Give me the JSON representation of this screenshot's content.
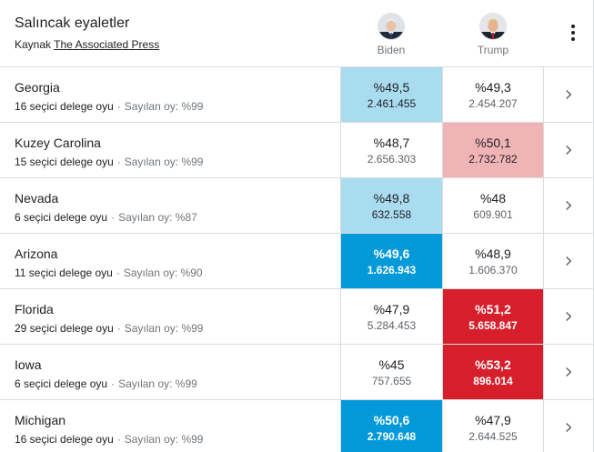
{
  "header": {
    "title": "Salıncak eyaletler",
    "source_prefix": "Kaynak",
    "source_link": "The Associated Press",
    "candidates": [
      {
        "name": "Biden",
        "icon": "biden-avatar-icon"
      },
      {
        "name": "Trump",
        "icon": "trump-avatar-icon"
      }
    ],
    "menu_icon": "more-vert-icon"
  },
  "colors": {
    "light_blue": "#aadcf0",
    "blue": "#049ad9",
    "light_red": "#f1b4b6",
    "red": "#d71f2c",
    "divider": "#dadce0"
  },
  "states": [
    {
      "name": "Georgia",
      "delegates": "16 seçici delege oyu",
      "counted": "Sayılan oy: %99",
      "biden": {
        "pct": "%49,5",
        "votes": "2.461.455",
        "style": "lightblue"
      },
      "trump": {
        "pct": "%49,3",
        "votes": "2.454.207",
        "style": "none"
      }
    },
    {
      "name": "Kuzey Carolina",
      "delegates": "15 seçici delege oyu",
      "counted": "Sayılan oy: %99",
      "biden": {
        "pct": "%48,7",
        "votes": "2.656.303",
        "style": "none"
      },
      "trump": {
        "pct": "%50,1",
        "votes": "2.732.782",
        "style": "lightred"
      }
    },
    {
      "name": "Nevada",
      "delegates": "6 seçici delege oyu",
      "counted": "Sayılan oy: %87",
      "biden": {
        "pct": "%49,8",
        "votes": "632.558",
        "style": "lightblue"
      },
      "trump": {
        "pct": "%48",
        "votes": "609.901",
        "style": "none"
      }
    },
    {
      "name": "Arizona",
      "delegates": "11 seçici delege oyu",
      "counted": "Sayılan oy: %90",
      "biden": {
        "pct": "%49,6",
        "votes": "1.626.943",
        "style": "blue"
      },
      "trump": {
        "pct": "%48,9",
        "votes": "1.606.370",
        "style": "none"
      }
    },
    {
      "name": "Florida",
      "delegates": "29 seçici delege oyu",
      "counted": "Sayılan oy: %99",
      "biden": {
        "pct": "%47,9",
        "votes": "5.284.453",
        "style": "none"
      },
      "trump": {
        "pct": "%51,2",
        "votes": "5.658.847",
        "style": "red"
      }
    },
    {
      "name": "Iowa",
      "delegates": "6 seçici delege oyu",
      "counted": "Sayılan oy: %99",
      "biden": {
        "pct": "%45",
        "votes": "757.655",
        "style": "none"
      },
      "trump": {
        "pct": "%53,2",
        "votes": "896.014",
        "style": "red"
      }
    },
    {
      "name": "Michigan",
      "delegates": "16 seçici delege oyu",
      "counted": "Sayılan oy: %99",
      "biden": {
        "pct": "%50,6",
        "votes": "2.790.648",
        "style": "blue"
      },
      "trump": {
        "pct": "%47,9",
        "votes": "2.644.525",
        "style": "none"
      }
    }
  ],
  "row_chevron_icon": "chevron-right-icon"
}
